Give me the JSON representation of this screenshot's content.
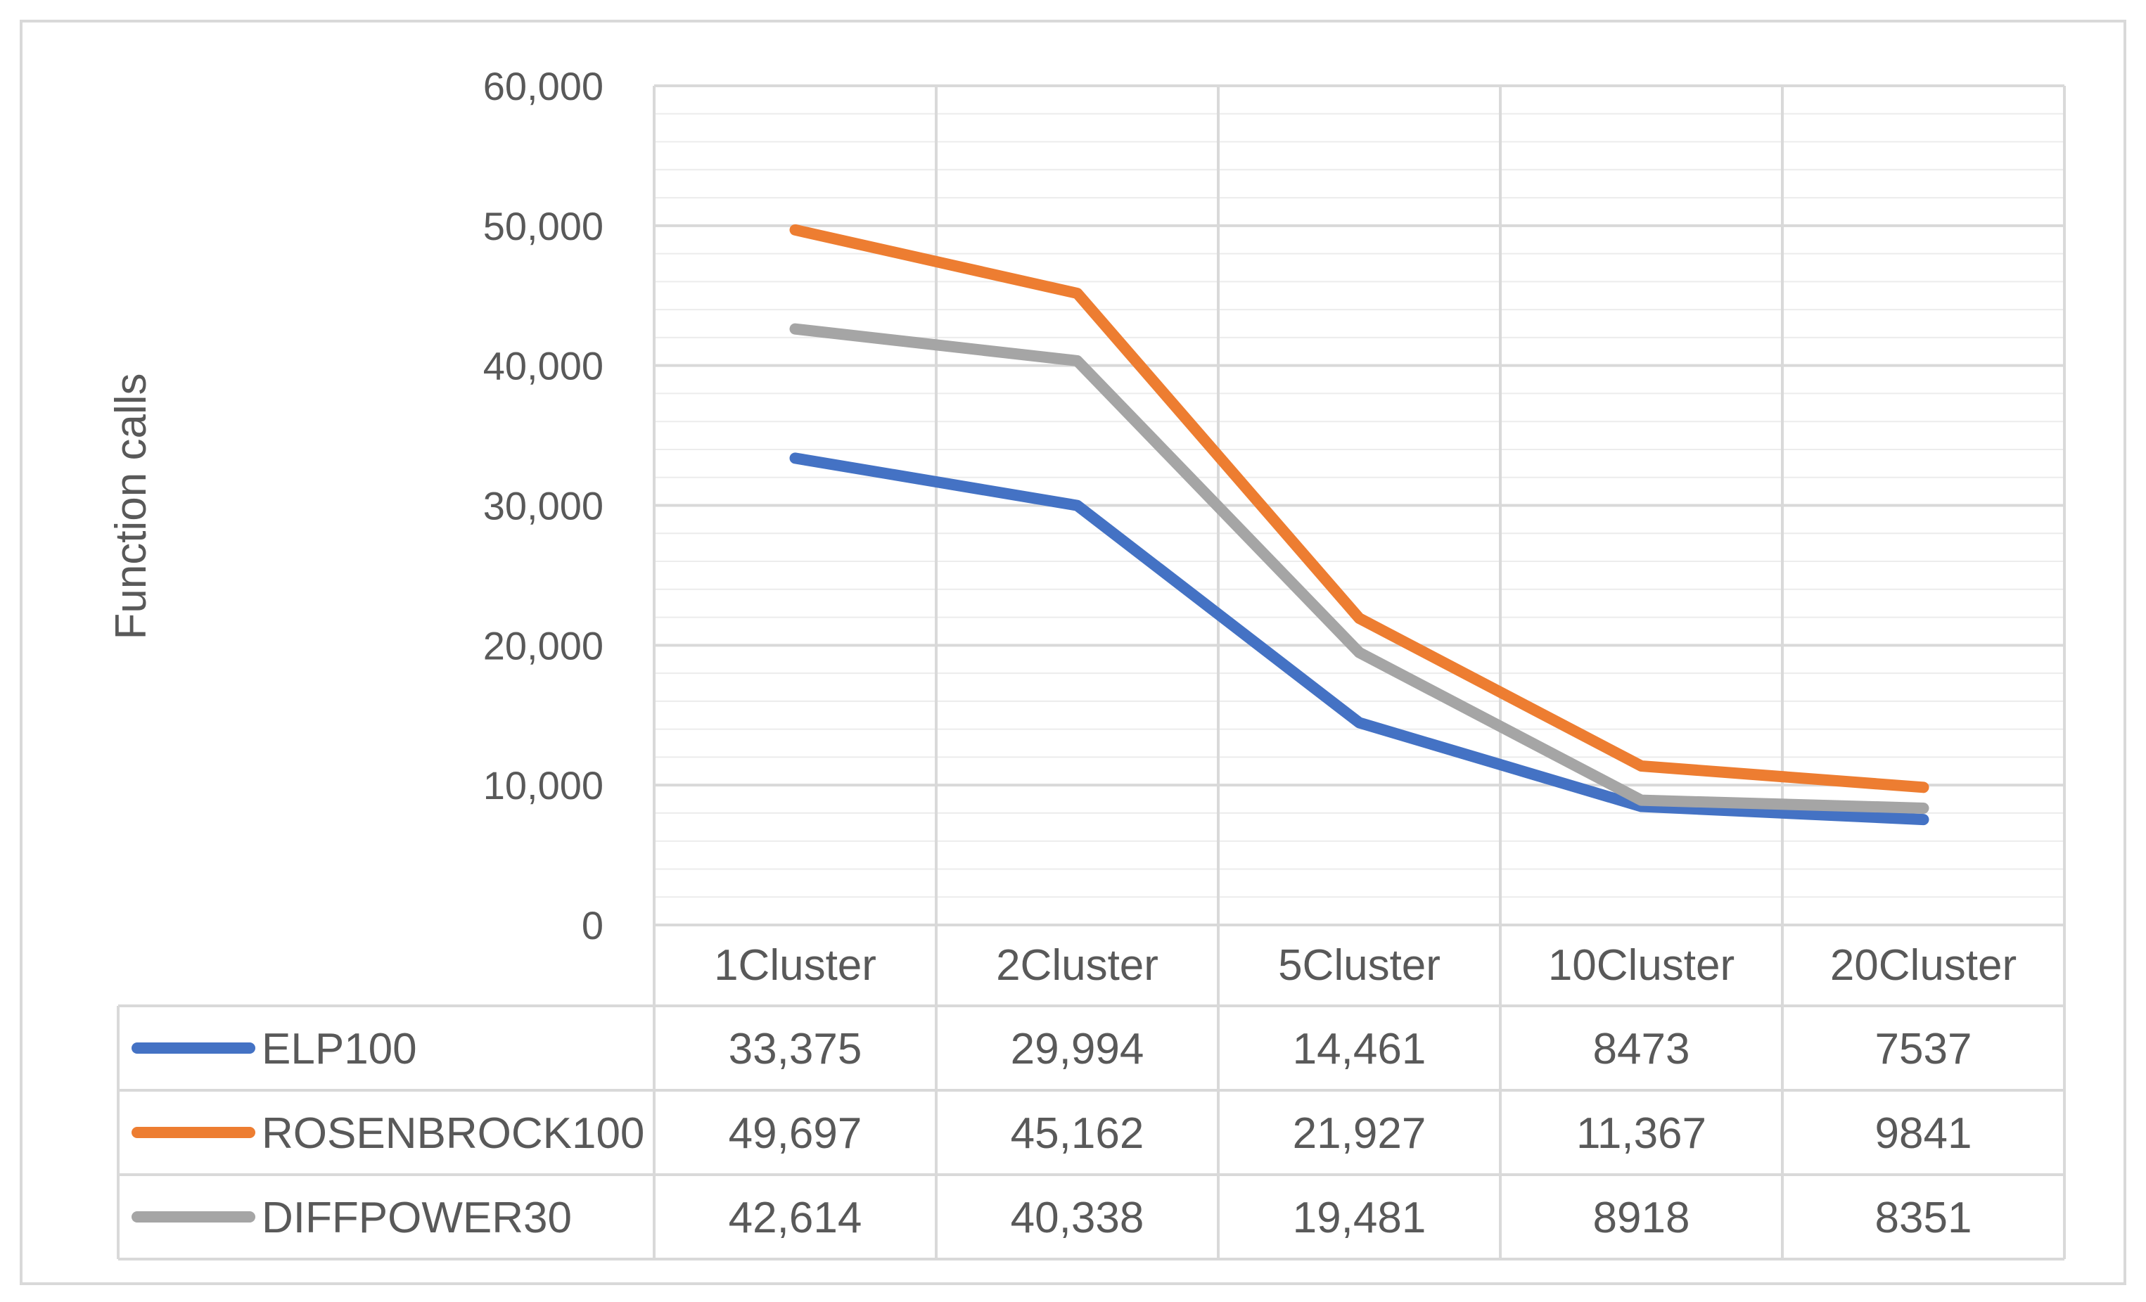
{
  "chart_data": {
    "type": "line",
    "title": "",
    "xlabel": "",
    "ylabel": "Function calls",
    "ylim": [
      0,
      60000
    ],
    "yticks": [
      "0",
      "10,000",
      "20,000",
      "30,000",
      "40,000",
      "50,000",
      "60,000"
    ],
    "grid": true,
    "legend": "data-table",
    "categories": [
      "1Cluster",
      "2Cluster",
      "5Cluster",
      "10Cluster",
      "20Cluster"
    ],
    "series": [
      {
        "name": "ELP100",
        "color": "#4472C4",
        "values": [
          33375,
          29994,
          14461,
          8473,
          7537
        ],
        "labels": [
          "33,375",
          "29,994",
          "14,461",
          "8473",
          "7537"
        ]
      },
      {
        "name": "ROSENBROCK100",
        "color": "#ED7D31",
        "values": [
          49697,
          45162,
          21927,
          11367,
          9841
        ],
        "labels": [
          "49,697",
          "45,162",
          "21,927",
          "11,367",
          "9841"
        ]
      },
      {
        "name": "DIFFPOWER30",
        "color": "#A5A5A5",
        "values": [
          42614,
          40338,
          19481,
          8918,
          8351
        ],
        "labels": [
          "42,614",
          "40,338",
          "19,481",
          "8918",
          "8351"
        ]
      }
    ]
  }
}
